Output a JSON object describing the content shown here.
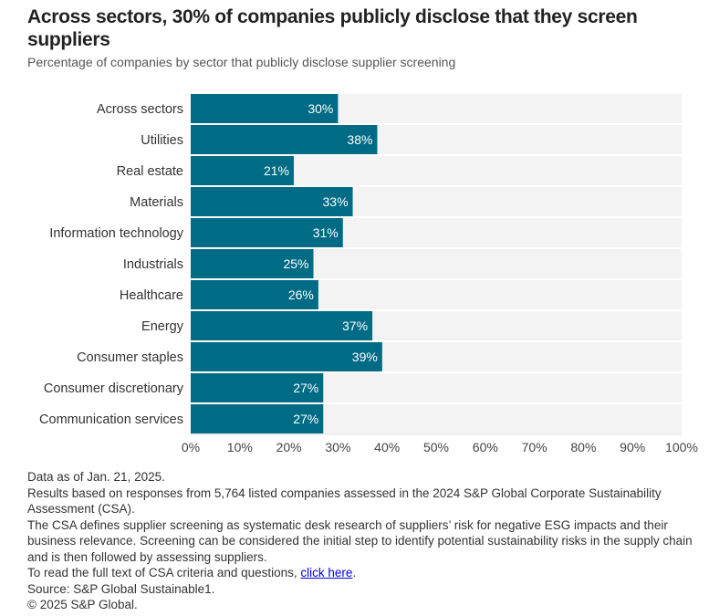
{
  "header": {
    "title": "Across sectors, 30% of companies publicly disclose that they screen suppliers",
    "subtitle": "Percentage of companies by sector that publicly disclose supplier screening"
  },
  "chart_data": {
    "type": "bar",
    "orientation": "horizontal",
    "title": "Across sectors, 30% of companies publicly disclose that they screen suppliers",
    "subtitle": "Percentage of companies by sector that publicly disclose supplier screening",
    "categories": [
      "Across sectors",
      "Utilities",
      "Real estate",
      "Materials",
      "Information technology",
      "Industrials",
      "Healthcare",
      "Energy",
      "Consumer staples",
      "Consumer discretionary",
      "Communication services"
    ],
    "values": [
      30,
      38,
      21,
      33,
      31,
      25,
      26,
      37,
      39,
      27,
      27
    ],
    "data_labels": [
      "30%",
      "38%",
      "21%",
      "33%",
      "31%",
      "25%",
      "26%",
      "37%",
      "39%",
      "27%",
      "27%"
    ],
    "xlabel": "",
    "ylabel": "",
    "xlim": [
      0,
      100
    ],
    "x_ticks": [
      0,
      10,
      20,
      30,
      40,
      50,
      60,
      70,
      80,
      90,
      100
    ],
    "x_tick_labels": [
      "0%",
      "10%",
      "20%",
      "30%",
      "40%",
      "50%",
      "60%",
      "70%",
      "80%",
      "90%",
      "100%"
    ],
    "grid": false,
    "legend": "none",
    "colors": {
      "bar": "#006b85",
      "track": "#f3f3f3",
      "label_text": "#ffffff"
    }
  },
  "notes": {
    "lines": [
      "Data as of Jan. 21, 2025.",
      "Results based on responses from 5,764 listed companies assessed in the 2024 S&P Global Corporate Sustainability Assessment (CSA).",
      "The CSA defines supplier screening as systematic desk research of suppliers’ risk for negative ESG impacts and their business relevance. Screening can be considered the initial step to identify potential sustainability risks in the supply chain and is then followed by assessing suppliers."
    ],
    "link_prefix": "To read the full text of CSA criteria and questions, ",
    "link_text": "click here",
    "link_suffix": ".",
    "source": "Source: S&P Global Sustainable1.",
    "copyright": "© 2025 S&P Global."
  }
}
